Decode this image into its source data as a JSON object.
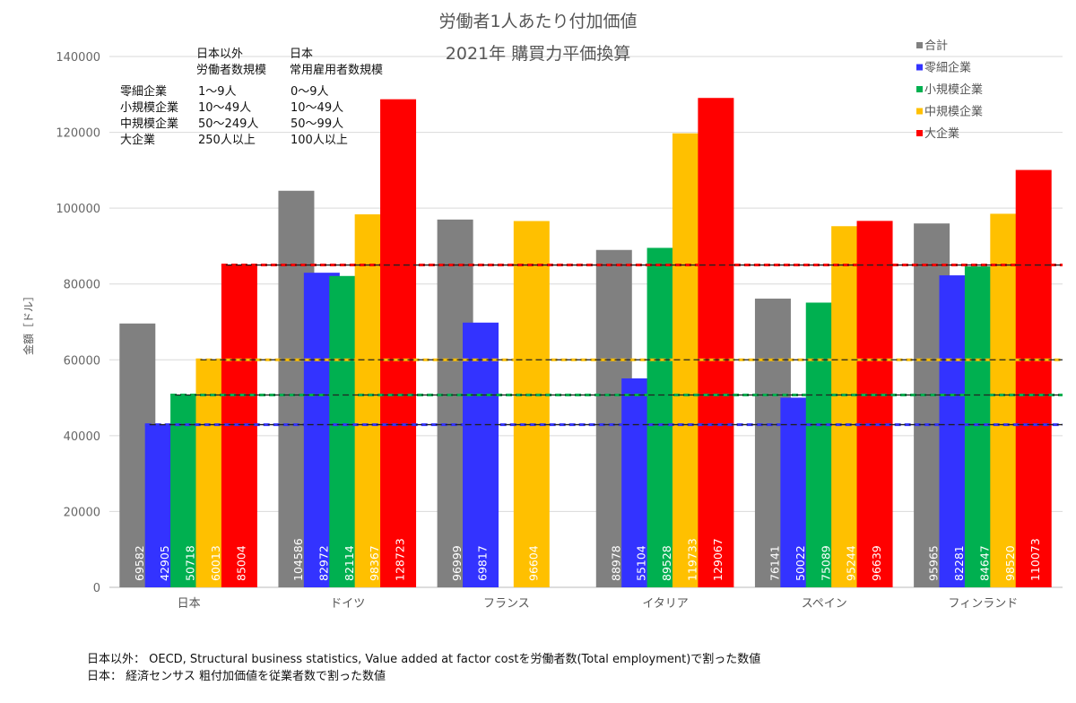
{
  "chart_data": {
    "type": "bar",
    "title": [
      "労働者1人あたり付加価値",
      "2021年 購買力平価換算"
    ],
    "ylabel": "金額［ドル］",
    "xlabel": "",
    "ylim": [
      0,
      140000
    ],
    "yticks": [
      0,
      20000,
      40000,
      60000,
      80000,
      100000,
      120000,
      140000
    ],
    "grid": true,
    "legend_position": "top-right",
    "categories": [
      "日本",
      "ドイツ",
      "フランス",
      "イタリア",
      "スペイン",
      "フィンランド"
    ],
    "series": [
      {
        "name": "合計",
        "color": "#808080",
        "values": [
          69582,
          104586,
          96999,
          88978,
          76141,
          95965
        ]
      },
      {
        "name": "零細企業",
        "color": "#3333ff",
        "values": [
          42905,
          82972,
          69817,
          55104,
          50022,
          82281
        ]
      },
      {
        "name": "小規模企業",
        "color": "#00b050",
        "values": [
          50718,
          82114,
          null,
          89528,
          75089,
          84647
        ]
      },
      {
        "name": "中規模企業",
        "color": "#ffc000",
        "values": [
          60013,
          98367,
          96604,
          119733,
          95244,
          98520
        ]
      },
      {
        "name": "大企業",
        "color": "#ff0000",
        "values": [
          85004,
          128723,
          null,
          129067,
          96639,
          110073
        ]
      }
    ],
    "reference_lines": [
      {
        "series": "零細企業",
        "value": 42905
      },
      {
        "series": "小規模企業",
        "value": 50718
      },
      {
        "series": "中規模企業",
        "value": 60013
      },
      {
        "series": "大企業",
        "value": 85004
      }
    ]
  },
  "size_table": {
    "headers": [
      [
        "日本以外",
        "労働者数規模"
      ],
      [
        "日本",
        "常用雇用者数規模"
      ]
    ],
    "rows": [
      [
        "零細企業",
        "1～9人",
        "0～9人"
      ],
      [
        "小規模企業",
        "10～49人",
        "10～49人"
      ],
      [
        "中規模企業",
        "50～249人",
        "50～99人"
      ],
      [
        "大企業",
        "250人以上",
        "100人以上"
      ]
    ]
  },
  "notes": [
    "日本以外： OECD, Structural business statistics, Value added at factor costを労働者数(Total employment)で割った数値",
    "日本： 経済センサス 粗付加価値を従業者数で割った数値"
  ]
}
